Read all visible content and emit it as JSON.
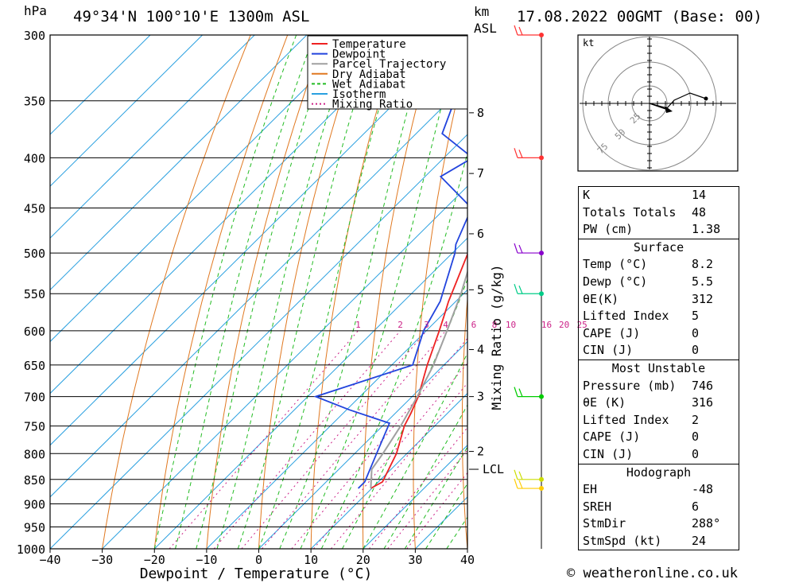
{
  "header": {
    "unit_hpa": "hPa",
    "location": "49°34'N  100°10'E  1300m  ASL",
    "km_label": "km",
    "asl_label": "ASL",
    "datetime": "17.08.2022  00GMT  (Base: 00)"
  },
  "chart_data": {
    "type": "line",
    "subtype": "skew-T log-p",
    "xlabel": "Dewpoint / Temperature (°C)",
    "ylabel": "hPa",
    "secondary_ylabel": "Mixing Ratio (g/kg)",
    "xlim": [
      -40,
      40
    ],
    "ylim": [
      1000,
      300
    ],
    "pressure_ticks": [
      300,
      350,
      400,
      450,
      500,
      550,
      600,
      650,
      700,
      750,
      800,
      850,
      900,
      950,
      1000
    ],
    "temp_ticks": [
      -40,
      -30,
      -20,
      -10,
      0,
      10,
      20,
      30,
      40
    ],
    "km_ticks": [
      {
        "label": "8",
        "p": 360
      },
      {
        "label": "7",
        "p": 415
      },
      {
        "label": "6",
        "p": 478
      },
      {
        "label": "5",
        "p": 545
      },
      {
        "label": "4",
        "p": 627
      },
      {
        "label": "3",
        "p": 700
      },
      {
        "label": "2",
        "p": 796
      }
    ],
    "lcl": {
      "label": "LCL",
      "p": 830
    },
    "mixing_ratio_labels": [
      "1",
      "2",
      "3",
      "4",
      "6",
      "8",
      "10",
      "16",
      "20",
      "25"
    ],
    "legend": [
      {
        "name": "Temperature",
        "color": "#ee2222"
      },
      {
        "name": "Dewpoint",
        "color": "#2244dd"
      },
      {
        "name": "Parcel Trajectory",
        "color": "#a0a0a0"
      },
      {
        "name": "Dry Adiabat",
        "color": "#e07820"
      },
      {
        "name": "Wet Adiabat",
        "color": "#22bb22"
      },
      {
        "name": "Isotherm",
        "color": "#2aa0e0"
      },
      {
        "name": "Mixing Ratio",
        "color": "#cc2288"
      }
    ],
    "series": [
      {
        "name": "Temperature",
        "color": "#ee2222",
        "points": [
          [
            868,
            9.8
          ],
          [
            855,
            10.8
          ],
          [
            800,
            8.0
          ],
          [
            750,
            4.2
          ],
          [
            728,
            3.0
          ],
          [
            700,
            1.2
          ],
          [
            650,
            -3.2
          ],
          [
            600,
            -7.5
          ],
          [
            580,
            -9.4
          ],
          [
            560,
            -11.4
          ],
          [
            540,
            -13.2
          ],
          [
            500,
            -17.0
          ],
          [
            450,
            -23.2
          ],
          [
            400,
            -30.0
          ],
          [
            380,
            -33.0
          ],
          [
            350,
            -38.5
          ],
          [
            300,
            -48.0
          ]
        ]
      },
      {
        "name": "Dewpoint",
        "color": "#2244dd",
        "points": [
          [
            868,
            7.4
          ],
          [
            855,
            7.4
          ],
          [
            800,
            4.2
          ],
          [
            745,
            0.8
          ],
          [
            722,
            -9.5
          ],
          [
            700,
            -18.5
          ],
          [
            650,
            -6.0
          ],
          [
            600,
            -10.5
          ],
          [
            560,
            -13.0
          ],
          [
            500,
            -19.5
          ],
          [
            490,
            -21.0
          ],
          [
            450,
            -25.0
          ],
          [
            418,
            -37.0
          ],
          [
            400,
            -34.5
          ],
          [
            378,
            -45.0
          ],
          [
            350,
            -49.0
          ],
          [
            320,
            -53.0
          ],
          [
            300,
            -56.0
          ]
        ]
      },
      {
        "name": "Parcel Trajectory",
        "color": "#a0a0a0",
        "points": [
          [
            868,
            9.8
          ],
          [
            830,
            6.3
          ],
          [
            800,
            5.4
          ],
          [
            750,
            3.5
          ],
          [
            700,
            1.0
          ],
          [
            650,
            -2.0
          ],
          [
            600,
            -6.0
          ],
          [
            550,
            -10.5
          ],
          [
            500,
            -16.0
          ],
          [
            450,
            -22.5
          ],
          [
            400,
            -30.5
          ],
          [
            350,
            -40.0
          ],
          [
            300,
            -51.0
          ]
        ]
      }
    ],
    "wind_barbs": [
      {
        "p": 300,
        "color": "#ff3333"
      },
      {
        "p": 400,
        "color": "#ff3333"
      },
      {
        "p": 500,
        "color": "#8800cc"
      },
      {
        "p": 550,
        "color": "#00cc88"
      },
      {
        "p": 700,
        "color": "#00cc00"
      },
      {
        "p": 850,
        "color": "#ccdd00"
      },
      {
        "p": 868,
        "color": "#ffcc00"
      }
    ]
  },
  "hodograph": {
    "unit": "kt",
    "ring_labels": [
      "25",
      "50",
      "75"
    ]
  },
  "indices": {
    "general": [
      {
        "label": "K",
        "value": "14"
      },
      {
        "label": "Totals Totals",
        "value": "48"
      },
      {
        "label": "PW (cm)",
        "value": "1.38"
      }
    ],
    "surface_title": "Surface",
    "surface": [
      {
        "label": "Temp (°C)",
        "value": "8.2"
      },
      {
        "label": "Dewp (°C)",
        "value": "5.5"
      },
      {
        "label": "θE(K)",
        "value": "312"
      },
      {
        "label": "Lifted Index",
        "value": "5"
      },
      {
        "label": "CAPE (J)",
        "value": "0"
      },
      {
        "label": "CIN (J)",
        "value": "0"
      }
    ],
    "unstable_title": "Most Unstable",
    "unstable": [
      {
        "label": "Pressure (mb)",
        "value": "746"
      },
      {
        "label": "θE (K)",
        "value": "316"
      },
      {
        "label": "Lifted Index",
        "value": "2"
      },
      {
        "label": "CAPE (J)",
        "value": "0"
      },
      {
        "label": "CIN (J)",
        "value": "0"
      }
    ],
    "hodo_title": "Hodograph",
    "hodo": [
      {
        "label": "EH",
        "value": "-48"
      },
      {
        "label": "SREH",
        "value": "6"
      },
      {
        "label": "StmDir",
        "value": "288°"
      },
      {
        "label": "StmSpd (kt)",
        "value": "24"
      }
    ]
  },
  "footer": {
    "credit": "© weatheronline.co.uk"
  }
}
